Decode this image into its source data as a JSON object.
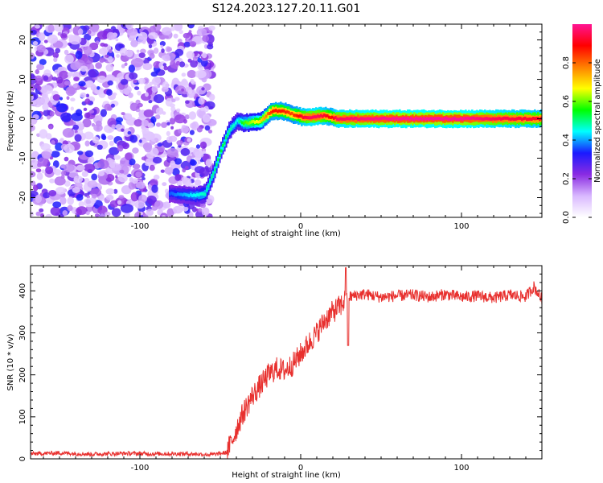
{
  "title": "S124.2023.127.20.11.G01",
  "chart_data": [
    {
      "type": "heatmap",
      "xlabel": "Height of straight line (km)",
      "ylabel": "Frequency (Hz)",
      "xlim": [
        -168,
        150
      ],
      "ylim": [
        -25,
        24
      ],
      "x_ticks": [
        -100,
        0,
        100
      ],
      "y_ticks": [
        -20,
        -10,
        0,
        10,
        20
      ],
      "colorbar": {
        "label": "Normalized spectral amplitude",
        "range": [
          0,
          1
        ],
        "ticks": [
          "0.0",
          "0.2",
          "0.4",
          "0.6",
          "0.8"
        ],
        "colors": [
          "#ffffff",
          "#d9b8ff",
          "#8a2be2",
          "#1a1aff",
          "#00ffff",
          "#00ff00",
          "#ffff00",
          "#ff8000",
          "#ff0000",
          "#ff1493"
        ]
      },
      "noise_region_x": [
        -168,
        -55
      ],
      "signal_track": {
        "x": [
          -82,
          -66,
          -60,
          -55,
          -50,
          -45,
          -40,
          -36,
          -32,
          -25,
          -20,
          -18,
          -12,
          -6,
          0,
          5,
          10,
          15,
          18,
          22,
          40,
          60,
          80,
          100,
          120,
          150
        ],
        "frequency_hz": [
          -19,
          -19.5,
          -19,
          -14,
          -8,
          -3,
          -0.5,
          -1,
          -1,
          -0.5,
          1.5,
          2,
          2,
          1.2,
          0.5,
          0.4,
          0.6,
          0.8,
          0.5,
          0,
          0,
          0,
          0,
          0,
          0,
          0
        ],
        "amplitude": [
          0.25,
          0.35,
          0.38,
          0.4,
          0.45,
          0.4,
          0.35,
          0.5,
          0.55,
          0.65,
          0.8,
          0.85,
          0.85,
          0.8,
          0.9,
          0.95,
          0.95,
          0.9,
          0.85,
          0.95,
          0.98,
          1.0,
          1.0,
          1.0,
          0.95,
          0.9
        ]
      }
    },
    {
      "type": "line",
      "xlabel": "Height of straight line (km)",
      "ylabel": "SNR (10 * v/v)",
      "xlim": [
        -168,
        150
      ],
      "ylim": [
        0,
        460
      ],
      "x_ticks": [
        -100,
        0,
        100
      ],
      "y_ticks": [
        0,
        100,
        200,
        300,
        400
      ],
      "line_color": "#e8302e",
      "x": [
        -168,
        -150,
        -130,
        -110,
        -90,
        -70,
        -55,
        -46,
        -42,
        -38,
        -35,
        -30,
        -25,
        -20,
        -15,
        -10,
        -5,
        0,
        5,
        10,
        15,
        20,
        25,
        28,
        30,
        35,
        40,
        50,
        60,
        70,
        80,
        90,
        100,
        110,
        120,
        130,
        140,
        145,
        150
      ],
      "y": [
        12,
        14,
        11,
        13,
        12,
        12,
        10,
        15,
        50,
        90,
        115,
        150,
        175,
        200,
        215,
        210,
        225,
        250,
        275,
        300,
        330,
        350,
        365,
        380,
        385,
        390,
        392,
        385,
        388,
        390,
        385,
        392,
        385,
        388,
        383,
        390,
        386,
        410,
        380
      ]
    }
  ]
}
